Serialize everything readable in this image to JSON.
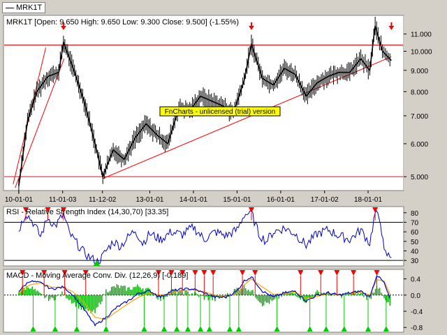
{
  "colors": {
    "background": "#d4d0c8",
    "panel": "#ffffff",
    "price": "#000000",
    "trendline": "#ff0000",
    "rsi": "#0000cc",
    "macd": "#0000cc",
    "signal": "#ffa500",
    "histogram": "#00aa00",
    "buy_marker": "#00cc00",
    "sell_marker": "#ff0000",
    "watermark_bg": "#ffff00"
  },
  "symbol_tab": "MRK1T",
  "watermark": "FnCharts - unlicensed (trial) version",
  "chart_data": [
    {
      "type": "line",
      "pane": "price",
      "title": "MRK1T [Open: 9.650  High: 9.650  Low: 9.300  Close: 9.500] (-1.55%)",
      "x_ticks": [
        "10-01-01",
        "11-01-03",
        "11-12-02",
        "13-01-01",
        "14-01-01",
        "15-01-01",
        "16-01-01",
        "17-01-02",
        "18-01-01"
      ],
      "y_ticks": [
        "5.000",
        "6.000",
        "7.000",
        "8.000",
        "9.000",
        "10.000",
        "11.000"
      ],
      "ylim": [
        4.65,
        12.1
      ],
      "y_scale": "log",
      "series": [
        {
          "x": [
            "2010-01-01",
            "2010-03-15",
            "2010-06-01",
            "2010-09-01",
            "2010-12-01",
            "2011-01-10",
            "2011-04-01",
            "2011-07-01",
            "2011-10-01",
            "2011-12-05",
            "2012-03-01",
            "2012-06-01",
            "2012-09-01",
            "2012-12-01",
            "2013-03-01",
            "2013-06-01",
            "2013-09-01",
            "2013-12-01",
            "2014-03-01",
            "2014-06-01",
            "2014-09-01",
            "2014-12-01",
            "2015-03-01",
            "2015-05-01",
            "2015-08-01",
            "2015-11-01",
            "2016-02-01",
            "2016-05-01",
            "2016-08-01",
            "2016-11-01",
            "2017-02-01",
            "2017-05-01",
            "2017-08-01",
            "2017-11-01",
            "2018-01-15",
            "2018-03-01",
            "2018-05-01",
            "2018-07-15"
          ],
          "values": [
            4.75,
            6.8,
            8.0,
            8.7,
            8.9,
            10.5,
            9.1,
            7.6,
            6.0,
            5.0,
            5.8,
            5.5,
            6.2,
            6.7,
            6.3,
            6.0,
            7.3,
            7.2,
            7.8,
            7.6,
            7.4,
            7.1,
            8.5,
            10.4,
            8.6,
            8.3,
            9.1,
            8.8,
            7.8,
            8.4,
            8.7,
            8.9,
            8.9,
            9.6,
            9.0,
            11.5,
            10.0,
            9.5
          ]
        }
      ],
      "trendlines": [
        {
          "from": [
            "2009-12-01",
            4.7
          ],
          "to": [
            "2011-01-15",
            9.6
          ]
        },
        {
          "from": [
            "2009-11-15",
            4.8
          ],
          "to": [
            "2010-08-15",
            10.2
          ]
        },
        {
          "from": [
            "2011-12-05",
            4.95
          ],
          "to": [
            "2018-07-15",
            9.7
          ]
        }
      ],
      "horizontal_lines": [
        10.35,
        5.0
      ],
      "markers": [
        {
          "type": "down-arrow",
          "x": "2011-01-10"
        },
        {
          "type": "down-arrow",
          "x": "2015-05-01"
        },
        {
          "type": "down-arrow",
          "x": "2018-07-15"
        }
      ]
    },
    {
      "type": "line",
      "pane": "rsi",
      "title": "RSI - Relative Strength Index (14,30,70) [33.35]",
      "y_ticks": [
        "30",
        "40",
        "50",
        "60",
        "70",
        "80"
      ],
      "ylim": [
        25,
        85
      ],
      "levels": [
        70,
        30
      ],
      "series": [
        {
          "x": [
            "2010-01-01",
            "2010-03-01",
            "2010-05-01",
            "2010-07-01",
            "2010-09-01",
            "2010-11-01",
            "2011-01-10",
            "2011-03-01",
            "2011-05-01",
            "2011-07-01",
            "2011-09-01",
            "2011-11-01",
            "2012-01-01",
            "2012-03-01",
            "2012-05-01",
            "2012-07-01",
            "2012-09-01",
            "2012-11-01",
            "2013-01-01",
            "2013-04-01",
            "2013-07-01",
            "2013-10-01",
            "2014-01-01",
            "2014-04-01",
            "2014-07-01",
            "2014-10-01",
            "2015-01-01",
            "2015-03-01",
            "2015-05-01",
            "2015-07-01",
            "2015-09-01",
            "2015-11-01",
            "2016-02-01",
            "2016-05-01",
            "2016-08-01",
            "2016-11-01",
            "2017-02-01",
            "2017-05-01",
            "2017-08-01",
            "2017-11-01",
            "2018-01-15",
            "2018-03-01",
            "2018-04-15",
            "2018-05-15",
            "2018-07-15"
          ],
          "values": [
            62,
            80,
            70,
            55,
            75,
            66,
            78,
            58,
            48,
            38,
            32,
            28,
            40,
            50,
            45,
            54,
            62,
            48,
            58,
            52,
            60,
            57,
            65,
            52,
            60,
            56,
            62,
            78,
            80,
            58,
            50,
            60,
            64,
            58,
            46,
            58,
            62,
            56,
            52,
            62,
            48,
            80,
            72,
            38,
            33
          ]
        }
      ],
      "markers": [
        {
          "type": "sell",
          "x": "2010-03-01"
        },
        {
          "type": "sell",
          "x": "2010-09-01"
        },
        {
          "type": "sell",
          "x": "2011-01-10"
        },
        {
          "type": "buy",
          "x": "2011-10-15"
        },
        {
          "type": "sell",
          "x": "2015-05-01"
        },
        {
          "type": "sell",
          "x": "2018-03-01"
        }
      ]
    },
    {
      "type": "bar",
      "pane": "macd",
      "title": "MACD - Moving Average Conv. Div. (12,26,9) [-0.189]",
      "y_ticks": [
        "-0.8",
        "-0.4",
        "0.0",
        "0.4"
      ],
      "ylim": [
        -0.9,
        0.6
      ],
      "series": [
        {
          "name": "MACD",
          "x": [
            "2010-01-01",
            "2010-04-01",
            "2010-07-01",
            "2010-10-01",
            "2011-01-10",
            "2011-04-01",
            "2011-07-01",
            "2011-10-01",
            "2012-01-01",
            "2012-04-01",
            "2012-07-01",
            "2012-10-01",
            "2013-01-01",
            "2013-04-01",
            "2013-07-01",
            "2013-10-01",
            "2014-01-01",
            "2014-04-01",
            "2014-07-01",
            "2014-10-01",
            "2015-01-01",
            "2015-03-01",
            "2015-05-01",
            "2015-08-01",
            "2015-11-01",
            "2016-02-01",
            "2016-05-01",
            "2016-08-01",
            "2016-11-01",
            "2017-02-01",
            "2017-05-01",
            "2017-08-01",
            "2017-11-01",
            "2018-01-15",
            "2018-03-15",
            "2018-05-15",
            "2018-07-15"
          ],
          "values": [
            0.1,
            0.35,
            0.3,
            0.15,
            0.2,
            0.0,
            -0.35,
            -0.75,
            -0.55,
            -0.3,
            -0.15,
            0.05,
            0.1,
            -0.05,
            0.1,
            0.15,
            0.15,
            0.05,
            -0.05,
            -0.05,
            0.1,
            0.35,
            0.45,
            0.1,
            -0.05,
            0.05,
            0.1,
            -0.15,
            0.0,
            0.05,
            0.0,
            0.05,
            0.1,
            -0.05,
            0.5,
            0.3,
            -0.19
          ]
        },
        {
          "name": "Signal",
          "x": [
            "2010-01-01",
            "2010-04-01",
            "2010-07-01",
            "2010-10-01",
            "2011-01-10",
            "2011-04-01",
            "2011-07-01",
            "2011-10-01",
            "2012-01-01",
            "2012-04-01",
            "2012-07-01",
            "2012-10-01",
            "2013-01-01",
            "2013-04-01",
            "2013-07-01",
            "2013-10-01",
            "2014-01-01",
            "2014-04-01",
            "2014-07-01",
            "2014-10-01",
            "2015-01-01",
            "2015-03-01",
            "2015-05-01",
            "2015-08-01",
            "2015-11-01",
            "2016-02-01",
            "2016-05-01",
            "2016-08-01",
            "2016-11-01",
            "2017-02-01",
            "2017-05-01",
            "2017-08-01",
            "2017-11-01",
            "2018-01-15",
            "2018-03-15",
            "2018-05-15",
            "2018-07-15"
          ],
          "values": [
            0.05,
            0.25,
            0.3,
            0.2,
            0.18,
            0.08,
            -0.18,
            -0.55,
            -0.6,
            -0.4,
            -0.22,
            -0.05,
            0.05,
            0.0,
            0.05,
            0.12,
            0.13,
            0.08,
            0.0,
            -0.04,
            0.03,
            0.25,
            0.4,
            0.2,
            0.02,
            0.03,
            0.08,
            -0.08,
            -0.03,
            0.03,
            0.01,
            0.03,
            0.08,
            0.0,
            0.38,
            0.35,
            -0.05
          ]
        }
      ],
      "markers_sell_x": [
        "2010-02-01",
        "2010-08-01",
        "2011-01-20",
        "2011-07-15",
        "2013-03-15",
        "2013-07-01",
        "2013-10-01",
        "2014-01-15",
        "2014-04-01",
        "2014-06-15",
        "2015-02-15",
        "2015-06-01",
        "2016-06-15",
        "2016-12-01",
        "2017-04-15",
        "2017-09-01",
        "2018-03-15"
      ],
      "markers_buy_x": [
        "2010-05-01",
        "2010-11-01",
        "2011-05-01",
        "2012-01-01",
        "2012-11-15",
        "2013-05-01",
        "2013-08-15",
        "2013-11-15",
        "2014-03-01",
        "2014-05-15",
        "2014-11-01",
        "2015-01-15",
        "2015-12-01",
        "2016-09-01",
        "2017-01-15",
        "2017-06-15",
        "2018-01-01",
        "2018-06-01"
      ]
    }
  ]
}
